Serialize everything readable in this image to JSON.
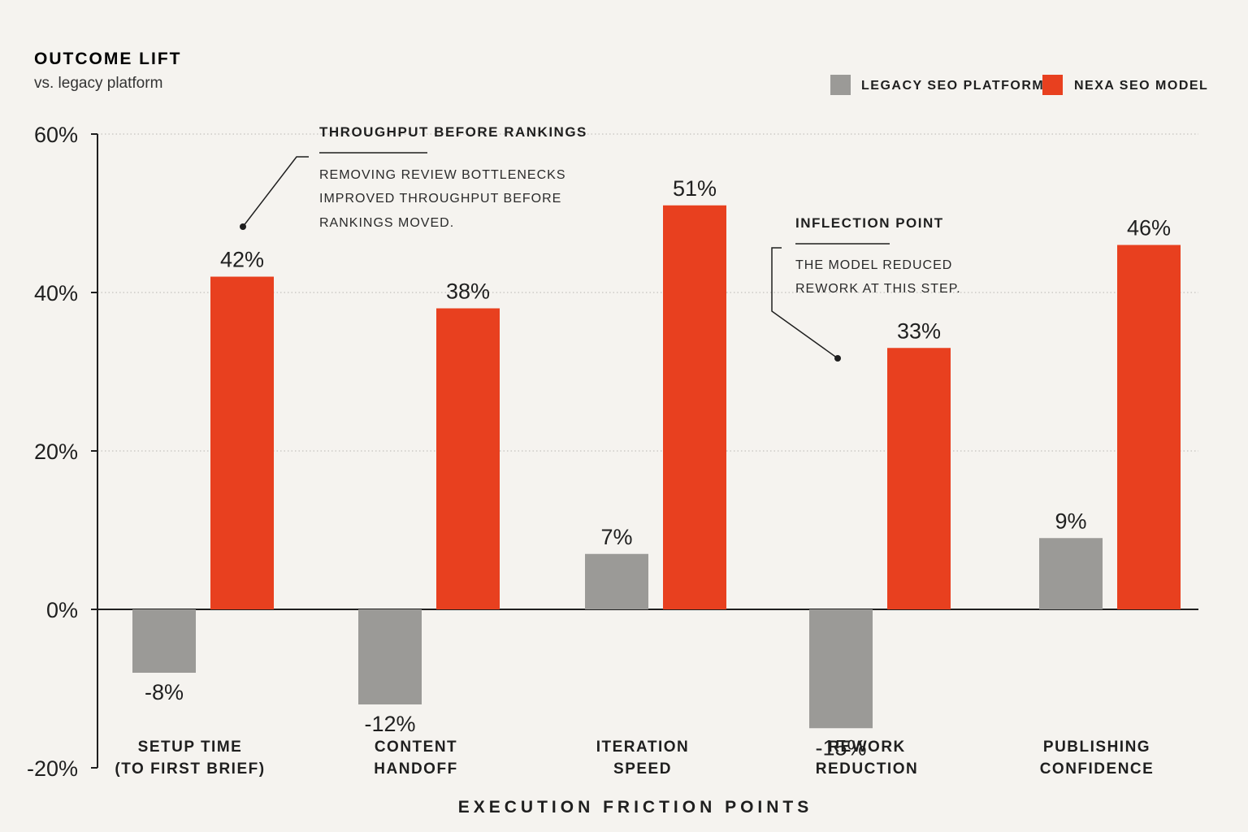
{
  "header": {
    "title": "OUTCOME LIFT",
    "subtitle": "vs. legacy platform"
  },
  "legend": {
    "placement": "top-right",
    "items": [
      {
        "label": "LEGACY SEO PLATFORM",
        "color": "#9b9a97"
      },
      {
        "label": "NEXA SEO MODEL",
        "color": "#e8401f"
      }
    ]
  },
  "annotations": [
    {
      "title": "THROUGHPUT BEFORE RANKINGS",
      "lines": [
        "REMOVING REVIEW BOTTLENECKS",
        "IMPROVED THROUGHPUT BEFORE",
        "RANKINGS MOVED."
      ]
    },
    {
      "title": "INFLECTION POINT",
      "lines": [
        "THE MODEL REDUCED",
        "REWORK AT THIS STEP."
      ]
    }
  ],
  "chart_data": {
    "type": "bar",
    "title": "OUTCOME LIFT",
    "subtitle": "vs. legacy platform",
    "xlabel": "EXECUTION FRICTION POINTS",
    "ylabel": "",
    "ylim": [
      -20,
      60
    ],
    "yticks": [
      60,
      40,
      20,
      0,
      -20
    ],
    "ytick_labels": [
      "60%",
      "40%",
      "20%",
      "0%",
      "-20%"
    ],
    "grid": true,
    "categories": [
      [
        "SETUP TIME",
        "(TO FIRST BRIEF)"
      ],
      [
        "CONTENT",
        "HANDOFF"
      ],
      [
        "ITERATION",
        "SPEED"
      ],
      [
        "REWORK",
        "REDUCTION"
      ],
      [
        "PUBLISHING",
        "CONFIDENCE"
      ]
    ],
    "series": [
      {
        "name": "LEGACY SEO PLATFORM",
        "color": "#9b9a97",
        "values": [
          -8,
          -12,
          7,
          -15,
          9
        ],
        "labels": [
          "-8%",
          "-12%",
          "7%",
          "-15%",
          "9%"
        ]
      },
      {
        "name": "NEXA SEO MODEL",
        "color": "#e8401f",
        "values": [
          42,
          38,
          51,
          33,
          46
        ],
        "labels": [
          "42%",
          "38%",
          "51%",
          "33%",
          "46%"
        ]
      }
    ]
  }
}
